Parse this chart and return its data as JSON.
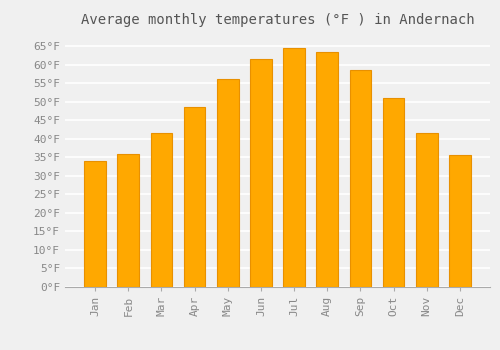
{
  "title": "Average monthly temperatures (°F ) in Andernach",
  "months": [
    "Jan",
    "Feb",
    "Mar",
    "Apr",
    "May",
    "Jun",
    "Jul",
    "Aug",
    "Sep",
    "Oct",
    "Nov",
    "Dec"
  ],
  "values": [
    34,
    36,
    41.5,
    48.5,
    56,
    61.5,
    64.5,
    63.5,
    58.5,
    51,
    41.5,
    35.5
  ],
  "bar_color": "#FFA800",
  "bar_edge_color": "#E89000",
  "background_color": "#f0f0f0",
  "grid_color": "#ffffff",
  "yticks": [
    0,
    5,
    10,
    15,
    20,
    25,
    30,
    35,
    40,
    45,
    50,
    55,
    60,
    65
  ],
  "ylim": [
    0,
    68
  ],
  "title_fontsize": 10,
  "tick_fontsize": 8,
  "font_family": "monospace"
}
